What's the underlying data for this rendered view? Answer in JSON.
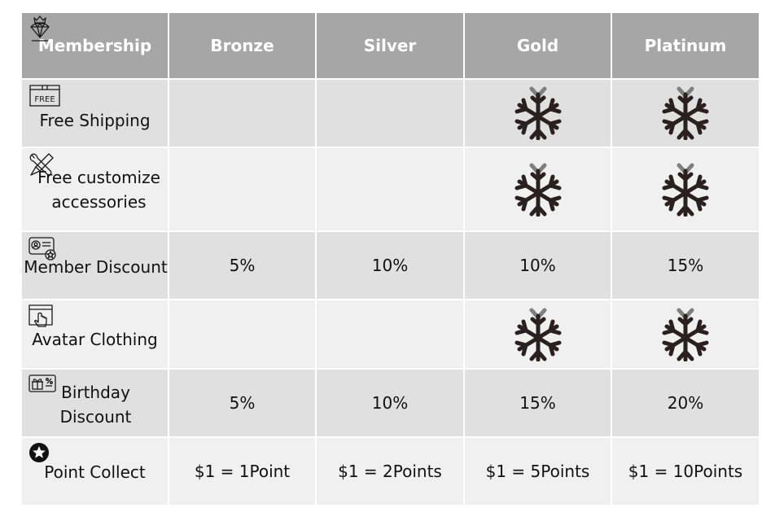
{
  "header": {
    "membership": "Membership",
    "tiers": [
      "Bronze",
      "Silver",
      "Gold",
      "Platinum"
    ]
  },
  "rows": [
    {
      "benefit": "Free Shipping",
      "icon": "free-box-icon",
      "values": [
        "",
        "",
        "snowflake",
        "snowflake"
      ]
    },
    {
      "benefit": "Free customize accessories",
      "icon": "tools-icon",
      "values": [
        "",
        "",
        "snowflake",
        "snowflake"
      ]
    },
    {
      "benefit": "Member Discount",
      "icon": "member-card-icon",
      "values": [
        "5%",
        "10%",
        "10%",
        "15%"
      ]
    },
    {
      "benefit": "Avatar Clothing",
      "icon": "touch-screen-icon",
      "values": [
        "",
        "",
        "snowflake",
        "snowflake"
      ]
    },
    {
      "benefit": "Birthday Discount",
      "icon": "gift-coupon-icon",
      "values": [
        "5%",
        "10%",
        "15%",
        "20%"
      ]
    },
    {
      "benefit": "Point Collect",
      "icon": "star-badge-icon",
      "values": [
        "$1 = 1Point",
        "$1 = 2Points",
        "$1 = 5Points",
        "$1 = 10Points"
      ]
    }
  ],
  "icon_labels": {
    "free": "FREE"
  },
  "colors": {
    "header_bg": "#a6a6a6",
    "row_dark": "#e0e0e0",
    "row_light": "#f0f0f0",
    "snowflake": "#2b2020",
    "snowflake_top": "#7f7f7f"
  }
}
